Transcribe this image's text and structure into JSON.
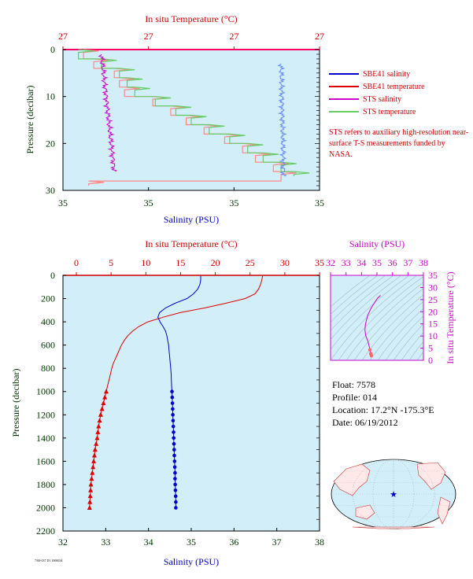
{
  "top_panel": {
    "top_axis_title": "In situ Temperature (°C)",
    "top_ticks": [
      "27",
      "27",
      "27",
      "27"
    ],
    "bottom_axis_title": "Salinity (PSU)",
    "bottom_ticks": [
      "35",
      "35",
      "35",
      "35"
    ],
    "y_axis_title": "Pressure (decibar)",
    "y_ticks": [
      "0",
      "10",
      "20",
      "30"
    ],
    "legend": [
      {
        "label": "SBE41 salinity",
        "color": "#0000cc"
      },
      {
        "label": "SBE41 temperature",
        "color": "#dd0000"
      },
      {
        "label": "STS salinity",
        "color": "#cc00cc"
      },
      {
        "label": "STS temperature",
        "color": "#66cc66"
      }
    ],
    "note": "STS refers to auxiliary high-resolution near-surface T-S measurements funded by NASA."
  },
  "main_panel": {
    "top_axis_title": "In situ Temperature (°C)",
    "top_ticks": [
      "0",
      "5",
      "10",
      "15",
      "20",
      "25",
      "30",
      "35"
    ],
    "bottom_axis_title": "Salinity (PSU)",
    "bottom_ticks": [
      "32",
      "33",
      "34",
      "35",
      "36",
      "37",
      "38"
    ],
    "y_axis_title": "Pressure (decibar)",
    "y_ticks": [
      "0",
      "200",
      "400",
      "600",
      "800",
      "1000",
      "1200",
      "1400",
      "1600",
      "1800",
      "2000",
      "2200"
    ]
  },
  "ts_panel": {
    "top_axis_title": "Salinity (PSU)",
    "top_ticks": [
      "32",
      "33",
      "34",
      "35",
      "36",
      "37",
      "38"
    ],
    "right_axis_title": "In situ Temperature (°C)",
    "right_ticks": [
      "0",
      "5",
      "10",
      "15",
      "20",
      "25",
      "30",
      "35"
    ]
  },
  "float_info": {
    "float": "Float:  7578",
    "profile": "Profile:  014",
    "location": "Location:  17.2°N  -175.3°E",
    "date": "Date:  06/19/2012"
  },
  "footer_text": "7/00-037 D1 1000034",
  "colors": {
    "plot_bg": "#d2eef8",
    "temperature": "#dd0000",
    "salinity": "#0000cc",
    "sts_salinity": "#cc00cc",
    "sts_temperature": "#66cc66",
    "axis_red": "#cc0000",
    "axis_green": "#003300",
    "axis_magenta": "#cc00cc"
  },
  "chart_data": [
    {
      "type": "line",
      "title": "",
      "xlabel": "In situ Temperature (°C)",
      "x2label": "Salinity (PSU)",
      "ylabel": "Pressure (decibar)",
      "ylim": [
        30,
        0
      ],
      "series": [
        {
          "name": "SBE41 temperature",
          "pressure": [
            0,
            2,
            4,
            6,
            8,
            10,
            12,
            14,
            16,
            18,
            20,
            22,
            24,
            26,
            28
          ],
          "relative_position": [
            0.08,
            0.12,
            0.2,
            0.22,
            0.24,
            0.35,
            0.42,
            0.48,
            0.55,
            0.63,
            0.7,
            0.75,
            0.82,
            0.85,
            0.1
          ]
        },
        {
          "name": "STS temperature",
          "pressure": [
            0,
            2,
            4,
            6,
            8,
            10,
            12,
            14,
            16,
            18,
            20,
            22,
            24,
            26
          ],
          "relative_position": [
            0.06,
            0.15,
            0.22,
            0.25,
            0.28,
            0.36,
            0.44,
            0.5,
            0.57,
            0.65,
            0.72,
            0.78,
            0.85,
            0.9
          ]
        },
        {
          "name": "STS salinity",
          "pressure": [
            1,
            26
          ],
          "relative_position": [
            0.15,
            0.2
          ]
        },
        {
          "name": "SBE41 salinity",
          "pressure": [
            3,
            27
          ],
          "relative_position": [
            0.85,
            0.86
          ]
        }
      ]
    },
    {
      "type": "line",
      "title": "",
      "xlabel": "Salinity (PSU)",
      "x2label": "In situ Temperature (°C)",
      "ylabel": "Pressure (decibar)",
      "xlim": [
        32,
        38
      ],
      "x2lim": [
        0,
        35
      ],
      "ylim": [
        2200,
        0
      ],
      "series": [
        {
          "name": "Temperature",
          "x_axis": "top",
          "pressure": [
            5,
            40,
            80,
            120,
            160,
            200,
            240,
            280,
            320,
            360,
            400,
            440,
            480,
            520,
            560,
            600,
            640,
            680,
            720,
            760,
            800,
            850,
            900,
            950,
            1000,
            1050,
            1100,
            1150,
            1200,
            1250,
            1300,
            1350,
            1400,
            1450,
            1500,
            1550,
            1600,
            1650,
            1700,
            1750,
            1800,
            1850,
            1900,
            1950,
            2000
          ],
          "values": [
            26.8,
            26.7,
            26.5,
            26.2,
            25.7,
            24.3,
            21.5,
            18.5,
            15.0,
            12.5,
            10.3,
            9.0,
            8.1,
            7.4,
            6.9,
            6.5,
            6.2,
            5.9,
            5.6,
            5.3,
            5.1,
            4.9,
            4.7,
            4.5,
            4.3,
            4.1,
            3.9,
            3.7,
            3.5,
            3.35,
            3.2,
            3.1,
            3.0,
            2.85,
            2.7,
            2.6,
            2.5,
            2.4,
            2.3,
            2.2,
            2.1,
            2.05,
            2.0,
            1.95,
            1.9
          ],
          "markers_from_pressure": 1000
        },
        {
          "name": "Salinity",
          "x_axis": "bottom",
          "pressure": [
            5,
            40,
            80,
            120,
            160,
            200,
            240,
            280,
            320,
            360,
            400,
            440,
            480,
            520,
            560,
            600,
            640,
            680,
            720,
            760,
            800,
            850,
            900,
            950,
            1000,
            1050,
            1100,
            1150,
            1200,
            1250,
            1300,
            1350,
            1400,
            1450,
            1500,
            1550,
            1600,
            1650,
            1700,
            1750,
            1800,
            1850,
            1900,
            1950,
            2000
          ],
          "values": [
            35.22,
            35.22,
            35.2,
            35.15,
            35.05,
            34.9,
            34.62,
            34.4,
            34.26,
            34.22,
            34.27,
            34.34,
            34.4,
            34.43,
            34.45,
            34.47,
            34.48,
            34.49,
            34.5,
            34.51,
            34.52,
            34.53,
            34.535,
            34.54,
            34.55,
            34.555,
            34.56,
            34.565,
            34.57,
            34.575,
            34.58,
            34.585,
            34.59,
            34.595,
            34.6,
            34.605,
            34.61,
            34.615,
            34.62,
            34.62,
            34.625,
            34.63,
            34.635,
            34.64,
            34.64
          ],
          "markers_from_pressure": 1000
        }
      ]
    },
    {
      "type": "line",
      "title": "",
      "xlabel": "Salinity (PSU)",
      "ylabel": "In situ Temperature (°C)",
      "xlim": [
        32,
        38
      ],
      "ylim": [
        0,
        35
      ],
      "series": [
        {
          "name": "T-S curve",
          "salinity": [
            35.22,
            35.2,
            35.05,
            34.9,
            34.62,
            34.4,
            34.26,
            34.22,
            34.27,
            34.34,
            34.4,
            34.45,
            34.5,
            34.55,
            34.6,
            34.64
          ],
          "temperature": [
            26.8,
            26.5,
            25.7,
            24.3,
            21.5,
            18.5,
            15.0,
            12.5,
            10.3,
            9.0,
            8.1,
            6.9,
            5.6,
            4.3,
            2.7,
            1.9
          ]
        }
      ]
    }
  ]
}
